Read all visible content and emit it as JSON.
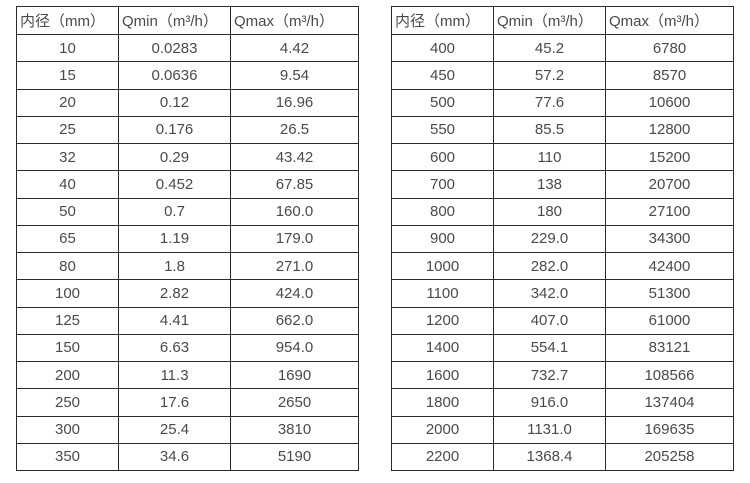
{
  "page": {
    "background": "#ffffff",
    "border_color": "#2b2b2b",
    "text_color": "#4a4a4a"
  },
  "tables": [
    {
      "name": "flow-table-small-diameters",
      "headers": [
        "内径（mm）",
        "Qmin（m³/h）",
        "Qmax（m³/h）"
      ],
      "rows": [
        [
          "10",
          "0.0283",
          "4.42"
        ],
        [
          "15",
          "0.0636",
          "9.54"
        ],
        [
          "20",
          "0.12",
          "16.96"
        ],
        [
          "25",
          "0.176",
          "26.5"
        ],
        [
          "32",
          "0.29",
          "43.42"
        ],
        [
          "40",
          "0.452",
          "67.85"
        ],
        [
          "50",
          "0.7",
          "160.0"
        ],
        [
          "65",
          "1.19",
          "179.0"
        ],
        [
          "80",
          "1.8",
          "271.0"
        ],
        [
          "100",
          "2.82",
          "424.0"
        ],
        [
          "125",
          "4.41",
          "662.0"
        ],
        [
          "150",
          "6.63",
          "954.0"
        ],
        [
          "200",
          "11.3",
          "1690"
        ],
        [
          "250",
          "17.6",
          "2650"
        ],
        [
          "300",
          "25.4",
          "3810"
        ],
        [
          "350",
          "34.6",
          "5190"
        ]
      ]
    },
    {
      "name": "flow-table-large-diameters",
      "headers": [
        "内径（mm）",
        "Qmin（m³/h）",
        "Qmax（m³/h）"
      ],
      "rows": [
        [
          "400",
          "45.2",
          "6780"
        ],
        [
          "450",
          "57.2",
          "8570"
        ],
        [
          "500",
          "77.6",
          "10600"
        ],
        [
          "550",
          "85.5",
          "12800"
        ],
        [
          "600",
          "110",
          "15200"
        ],
        [
          "700",
          "138",
          "20700"
        ],
        [
          "800",
          "180",
          "27100"
        ],
        [
          "900",
          "229.0",
          "34300"
        ],
        [
          "1000",
          "282.0",
          "42400"
        ],
        [
          "1100",
          "342.0",
          "51300"
        ],
        [
          "1200",
          "407.0",
          "61000"
        ],
        [
          "1400",
          "554.1",
          "83121"
        ],
        [
          "1600",
          "732.7",
          "108566"
        ],
        [
          "1800",
          "916.0",
          "137404"
        ],
        [
          "2000",
          "1131.0",
          "169635"
        ],
        [
          "2200",
          "1368.4",
          "205258"
        ]
      ]
    }
  ]
}
